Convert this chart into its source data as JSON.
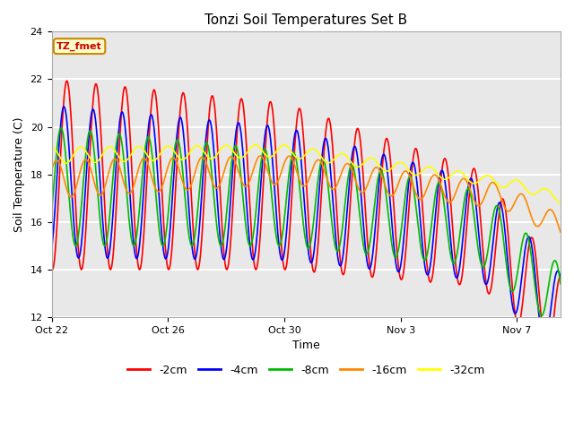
{
  "title": "Tonzi Soil Temperatures Set B",
  "xlabel": "Time",
  "ylabel": "Soil Temperature (C)",
  "ylim": [
    12,
    24
  ],
  "xlim_days": [
    0,
    17.5
  ],
  "background_color": "#e8e8e8",
  "series_colors": {
    "-2cm": "#ff0000",
    "-4cm": "#0000ff",
    "-8cm": "#00bb00",
    "-16cm": "#ff8800",
    "-32cm": "#ffff00"
  },
  "xtick_labels": [
    "Oct 22",
    "Oct 26",
    "Oct 30",
    "Nov 3",
    "Nov 7"
  ],
  "xtick_positions": [
    0,
    4,
    8,
    12,
    16
  ],
  "ytick_labels": [
    "12",
    "14",
    "16",
    "18",
    "20",
    "22",
    "24"
  ],
  "ytick_positions": [
    12,
    14,
    16,
    18,
    20,
    22,
    24
  ],
  "annotation_text": "TZ_fmet",
  "annotation_color": "#cc0000",
  "annotation_bg": "#ffffcc",
  "annotation_border": "#cc8800",
  "grid_color": "#ffffff",
  "grid_linewidth": 1.5,
  "line_width": 1.2
}
